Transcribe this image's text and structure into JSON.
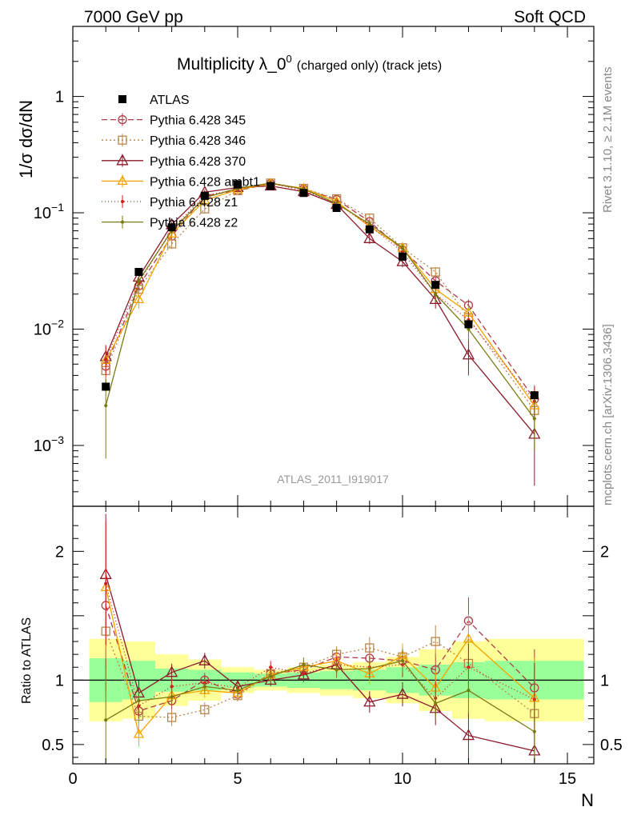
{
  "header": {
    "left": "7000 GeV pp",
    "right": "Soft QCD"
  },
  "side_labels": {
    "rivet": "Rivet 3.1.10, ≥ 2.1M events",
    "mcplots": "mcplots.cern.ch [arXiv:1306.3436]"
  },
  "chart_data": {
    "type": "scatter",
    "title": "Multiplicity λ_0",
    "title_superscript": "0",
    "title_suffix": "(charged only) (track jets)",
    "analysis_label": "ATLAS_2011_I919017",
    "xlabel": "N",
    "ylabel": "1/σ dσ/dN",
    "ratio_ylabel": "Ratio to ATLAS",
    "xlim": [
      0,
      15.8
    ],
    "ylim": [
      0.0003,
      4
    ],
    "yscale": "log",
    "ratio_ylim": [
      0.35,
      2.35
    ],
    "x_ticks": [
      "0",
      "5",
      "10",
      "15"
    ],
    "y_ticks_main": [
      {
        "mant": "10",
        "exp": "−3",
        "value": 0.001
      },
      {
        "mant": "10",
        "exp": "−2",
        "value": 0.01
      },
      {
        "mant": "10",
        "exp": "−1",
        "value": 0.1
      },
      {
        "mant": "1",
        "exp": "",
        "value": 1
      }
    ],
    "y_ticks_ratio": [
      "0.5",
      "1",
      "2"
    ],
    "x": [
      1,
      2,
      3,
      4,
      5,
      6,
      7,
      8,
      9,
      10,
      11,
      12,
      14
    ],
    "bins": [
      [
        0.5,
        1.5
      ],
      [
        1.5,
        2.5
      ],
      [
        2.5,
        3.5
      ],
      [
        3.5,
        4.5
      ],
      [
        4.5,
        5.5
      ],
      [
        5.5,
        6.5
      ],
      [
        6.5,
        7.5
      ],
      [
        7.5,
        8.5
      ],
      [
        8.5,
        9.5
      ],
      [
        9.5,
        10.5
      ],
      [
        10.5,
        11.5
      ],
      [
        11.5,
        12.5
      ],
      [
        12.5,
        15.5
      ]
    ],
    "data": {
      "name": "ATLAS",
      "values": [
        0.0032,
        0.031,
        0.075,
        0.14,
        0.175,
        0.17,
        0.148,
        0.11,
        0.072,
        0.042,
        0.024,
        0.011,
        0.0027
      ],
      "band_inner": [
        0.17,
        0.15,
        0.09,
        0.08,
        0.06,
        0.05,
        0.06,
        0.07,
        0.08,
        0.1,
        0.12,
        0.14,
        0.15
      ],
      "band_outer": [
        0.32,
        0.3,
        0.2,
        0.16,
        0.1,
        0.08,
        0.1,
        0.12,
        0.14,
        0.18,
        0.24,
        0.3,
        0.32
      ]
    },
    "series": [
      {
        "name": "Pythia 6.428 345",
        "color": "#b03a48",
        "dash": "7,4",
        "marker": "circle",
        "values": [
          0.0048,
          0.0235,
          0.063,
          0.14,
          0.155,
          0.178,
          0.16,
          0.13,
          0.084,
          0.048,
          0.026,
          0.016,
          0.0025
        ],
        "errors": [
          0.0015,
          0.003,
          0.005,
          0.008,
          0.008,
          0.008,
          0.008,
          0.007,
          0.006,
          0.004,
          0.003,
          0.002,
          0.0008
        ],
        "ratio": [
          1.58,
          0.76,
          0.84,
          1.0,
          0.89,
          1.05,
          1.08,
          1.18,
          1.17,
          1.15,
          1.08,
          1.46,
          0.94
        ]
      },
      {
        "name": "Pythia 6.428 346",
        "color": "#b8864a",
        "dash": "2,3",
        "marker": "square",
        "values": [
          0.0044,
          0.022,
          0.054,
          0.108,
          0.155,
          0.18,
          0.162,
          0.132,
          0.09,
          0.05,
          0.031,
          0.0125,
          0.002
        ],
        "errors": [
          0.0015,
          0.003,
          0.005,
          0.008,
          0.008,
          0.008,
          0.008,
          0.007,
          0.006,
          0.004,
          0.003,
          0.002,
          0.0008
        ],
        "ratio": [
          1.38,
          0.72,
          0.71,
          0.77,
          0.88,
          1.05,
          1.1,
          1.2,
          1.25,
          1.18,
          1.3,
          1.13,
          0.74
        ]
      },
      {
        "name": "Pythia 6.428 370",
        "color": "#8b1a2b",
        "dash": "",
        "marker": "triangle",
        "values": [
          0.0058,
          0.028,
          0.079,
          0.15,
          0.165,
          0.17,
          0.152,
          0.118,
          0.06,
          0.038,
          0.018,
          0.006,
          0.00125
        ],
        "errors": [
          0.0015,
          0.003,
          0.005,
          0.008,
          0.008,
          0.008,
          0.008,
          0.007,
          0.006,
          0.004,
          0.003,
          0.002,
          0.0008
        ],
        "ratio": [
          1.82,
          0.9,
          1.06,
          1.15,
          0.95,
          1.0,
          1.04,
          1.12,
          0.83,
          0.89,
          0.78,
          0.57,
          0.45
        ]
      },
      {
        "name": "Pythia 6.428 ambt1",
        "color": "#f5a200",
        "dash": "",
        "marker": "triangle-sm",
        "values": [
          0.0054,
          0.018,
          0.066,
          0.128,
          0.158,
          0.178,
          0.162,
          0.125,
          0.076,
          0.05,
          0.022,
          0.0138,
          0.0022
        ],
        "errors": [
          0.0015,
          0.003,
          0.005,
          0.008,
          0.008,
          0.008,
          0.008,
          0.007,
          0.006,
          0.004,
          0.003,
          0.002,
          0.0008
        ],
        "ratio": [
          1.72,
          0.58,
          0.88,
          0.92,
          0.9,
          1.04,
          1.1,
          1.15,
          1.05,
          1.19,
          0.94,
          1.32,
          0.86
        ]
      },
      {
        "name": "Pythia 6.428 z1",
        "color": "#cc2020",
        "dash": "1,3",
        "marker": "dot",
        "values": [
          0.0055,
          0.025,
          0.072,
          0.14,
          0.16,
          0.18,
          0.155,
          0.12,
          0.078,
          0.046,
          0.02,
          0.012,
          0.0024
        ],
        "errors": [
          0.0015,
          0.003,
          0.005,
          0.008,
          0.008,
          0.008,
          0.008,
          0.007,
          0.006,
          0.004,
          0.003,
          0.002,
          0.0008
        ],
        "ratio": [
          1.75,
          0.8,
          0.95,
          0.98,
          0.94,
          1.1,
          1.05,
          1.12,
          1.1,
          1.12,
          0.86,
          1.1,
          0.85
        ]
      },
      {
        "name": "Pythia 6.428 z2",
        "color": "#7a7a10",
        "dash": "",
        "marker": "dot",
        "values": [
          0.0022,
          0.026,
          0.07,
          0.135,
          0.162,
          0.18,
          0.16,
          0.12,
          0.08,
          0.05,
          0.02,
          0.01,
          0.0017
        ],
        "errors": [
          0.0015,
          0.003,
          0.005,
          0.008,
          0.008,
          0.008,
          0.008,
          0.007,
          0.006,
          0.004,
          0.003,
          0.002,
          0.0008
        ],
        "ratio": [
          0.69,
          0.84,
          0.87,
          0.95,
          0.92,
          1.03,
          1.12,
          1.08,
          1.09,
          1.15,
          0.82,
          0.92,
          0.6
        ]
      }
    ]
  }
}
